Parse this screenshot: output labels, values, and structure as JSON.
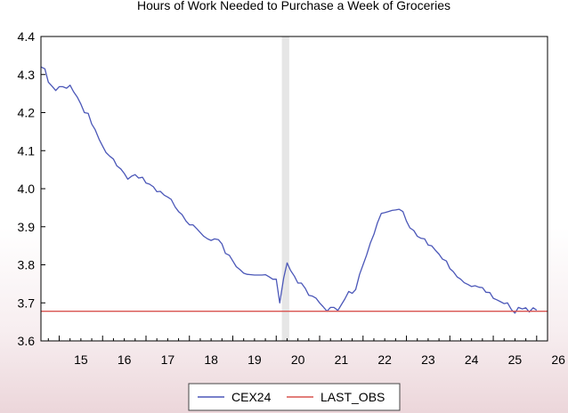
{
  "chart_data": {
    "type": "line",
    "title": "Hours of Work Needed to Purchase a Week of Groceries",
    "xlabel": "",
    "ylabel": "",
    "xlim": [
      2014.58,
      2026.25
    ],
    "ylim": [
      3.6,
      4.4
    ],
    "y_ticks": [
      "3.6",
      "3.7",
      "3.8",
      "3.9",
      "4.0",
      "4.1",
      "4.2",
      "4.3",
      "4.4"
    ],
    "x_ticks": [
      "15",
      "16",
      "17",
      "18",
      "19",
      "20",
      "21",
      "22",
      "23",
      "24",
      "25",
      "26"
    ],
    "grid": false,
    "legend": "bottom",
    "shaded_period": {
      "start": 2020.13,
      "end": 2020.3,
      "color": "#e6e6e6"
    },
    "series": [
      {
        "name": "CEX24",
        "color": "#4b57b8",
        "points": [
          [
            2014.58,
            4.32
          ],
          [
            2014.67,
            4.315
          ],
          [
            2014.75,
            4.28
          ],
          [
            2014.83,
            4.27
          ],
          [
            2014.92,
            4.258
          ],
          [
            2015.0,
            4.268
          ],
          [
            2015.08,
            4.268
          ],
          [
            2015.17,
            4.264
          ],
          [
            2015.25,
            4.272
          ],
          [
            2015.33,
            4.255
          ],
          [
            2015.42,
            4.24
          ],
          [
            2015.5,
            4.222
          ],
          [
            2015.58,
            4.2
          ],
          [
            2015.67,
            4.198
          ],
          [
            2015.75,
            4.17
          ],
          [
            2015.83,
            4.155
          ],
          [
            2015.92,
            4.13
          ],
          [
            2016.0,
            4.112
          ],
          [
            2016.08,
            4.095
          ],
          [
            2016.17,
            4.085
          ],
          [
            2016.25,
            4.078
          ],
          [
            2016.33,
            4.06
          ],
          [
            2016.42,
            4.052
          ],
          [
            2016.5,
            4.04
          ],
          [
            2016.58,
            4.025
          ],
          [
            2016.67,
            4.033
          ],
          [
            2016.75,
            4.037
          ],
          [
            2016.83,
            4.028
          ],
          [
            2016.92,
            4.03
          ],
          [
            2017.0,
            4.015
          ],
          [
            2017.08,
            4.012
          ],
          [
            2017.17,
            4.005
          ],
          [
            2017.25,
            3.992
          ],
          [
            2017.33,
            3.993
          ],
          [
            2017.42,
            3.983
          ],
          [
            2017.5,
            3.978
          ],
          [
            2017.58,
            3.972
          ],
          [
            2017.67,
            3.952
          ],
          [
            2017.75,
            3.94
          ],
          [
            2017.83,
            3.932
          ],
          [
            2017.92,
            3.915
          ],
          [
            2018.0,
            3.905
          ],
          [
            2018.08,
            3.905
          ],
          [
            2018.17,
            3.895
          ],
          [
            2018.25,
            3.885
          ],
          [
            2018.33,
            3.875
          ],
          [
            2018.42,
            3.868
          ],
          [
            2018.5,
            3.864
          ],
          [
            2018.58,
            3.868
          ],
          [
            2018.67,
            3.866
          ],
          [
            2018.75,
            3.855
          ],
          [
            2018.83,
            3.83
          ],
          [
            2018.92,
            3.825
          ],
          [
            2019.0,
            3.81
          ],
          [
            2019.08,
            3.795
          ],
          [
            2019.17,
            3.787
          ],
          [
            2019.25,
            3.778
          ],
          [
            2019.33,
            3.775
          ],
          [
            2019.42,
            3.774
          ],
          [
            2019.5,
            3.773
          ],
          [
            2019.58,
            3.773
          ],
          [
            2019.67,
            3.773
          ],
          [
            2019.75,
            3.774
          ],
          [
            2019.83,
            3.769
          ],
          [
            2019.92,
            3.762
          ],
          [
            2020.0,
            3.762
          ],
          [
            2020.08,
            3.7
          ],
          [
            2020.17,
            3.765
          ],
          [
            2020.25,
            3.805
          ],
          [
            2020.33,
            3.785
          ],
          [
            2020.42,
            3.77
          ],
          [
            2020.5,
            3.752
          ],
          [
            2020.58,
            3.752
          ],
          [
            2020.67,
            3.738
          ],
          [
            2020.75,
            3.72
          ],
          [
            2020.83,
            3.718
          ],
          [
            2020.92,
            3.712
          ],
          [
            2021.0,
            3.7
          ],
          [
            2021.08,
            3.69
          ],
          [
            2021.17,
            3.678
          ],
          [
            2021.25,
            3.688
          ],
          [
            2021.33,
            3.688
          ],
          [
            2021.42,
            3.68
          ],
          [
            2021.5,
            3.695
          ],
          [
            2021.58,
            3.71
          ],
          [
            2021.67,
            3.73
          ],
          [
            2021.75,
            3.725
          ],
          [
            2021.83,
            3.735
          ],
          [
            2021.92,
            3.775
          ],
          [
            2022.0,
            3.8
          ],
          [
            2022.08,
            3.825
          ],
          [
            2022.17,
            3.858
          ],
          [
            2022.25,
            3.88
          ],
          [
            2022.33,
            3.91
          ],
          [
            2022.42,
            3.935
          ],
          [
            2022.5,
            3.937
          ],
          [
            2022.58,
            3.94
          ],
          [
            2022.67,
            3.943
          ],
          [
            2022.75,
            3.944
          ],
          [
            2022.83,
            3.946
          ],
          [
            2022.92,
            3.94
          ],
          [
            2023.0,
            3.915
          ],
          [
            2023.08,
            3.897
          ],
          [
            2023.17,
            3.89
          ],
          [
            2023.25,
            3.875
          ],
          [
            2023.33,
            3.87
          ],
          [
            2023.42,
            3.868
          ],
          [
            2023.5,
            3.852
          ],
          [
            2023.58,
            3.85
          ],
          [
            2023.67,
            3.838
          ],
          [
            2023.75,
            3.828
          ],
          [
            2023.83,
            3.815
          ],
          [
            2023.92,
            3.81
          ],
          [
            2024.0,
            3.79
          ],
          [
            2024.08,
            3.782
          ],
          [
            2024.17,
            3.768
          ],
          [
            2024.25,
            3.762
          ],
          [
            2024.33,
            3.753
          ],
          [
            2024.42,
            3.748
          ],
          [
            2024.5,
            3.743
          ],
          [
            2024.58,
            3.745
          ],
          [
            2024.67,
            3.741
          ],
          [
            2024.75,
            3.74
          ],
          [
            2024.83,
            3.728
          ],
          [
            2024.92,
            3.727
          ],
          [
            2025.0,
            3.712
          ],
          [
            2025.08,
            3.708
          ],
          [
            2025.17,
            3.703
          ],
          [
            2025.25,
            3.698
          ],
          [
            2025.33,
            3.7
          ],
          [
            2025.42,
            3.682
          ],
          [
            2025.5,
            3.673
          ],
          [
            2025.58,
            3.688
          ],
          [
            2025.67,
            3.684
          ],
          [
            2025.75,
            3.687
          ],
          [
            2025.83,
            3.676
          ],
          [
            2025.92,
            3.687
          ],
          [
            2026.0,
            3.681
          ]
        ]
      },
      {
        "name": "LAST_OBS",
        "color": "#d9534f",
        "points": [
          [
            2014.58,
            3.678
          ],
          [
            2026.25,
            3.678
          ]
        ]
      }
    ]
  }
}
